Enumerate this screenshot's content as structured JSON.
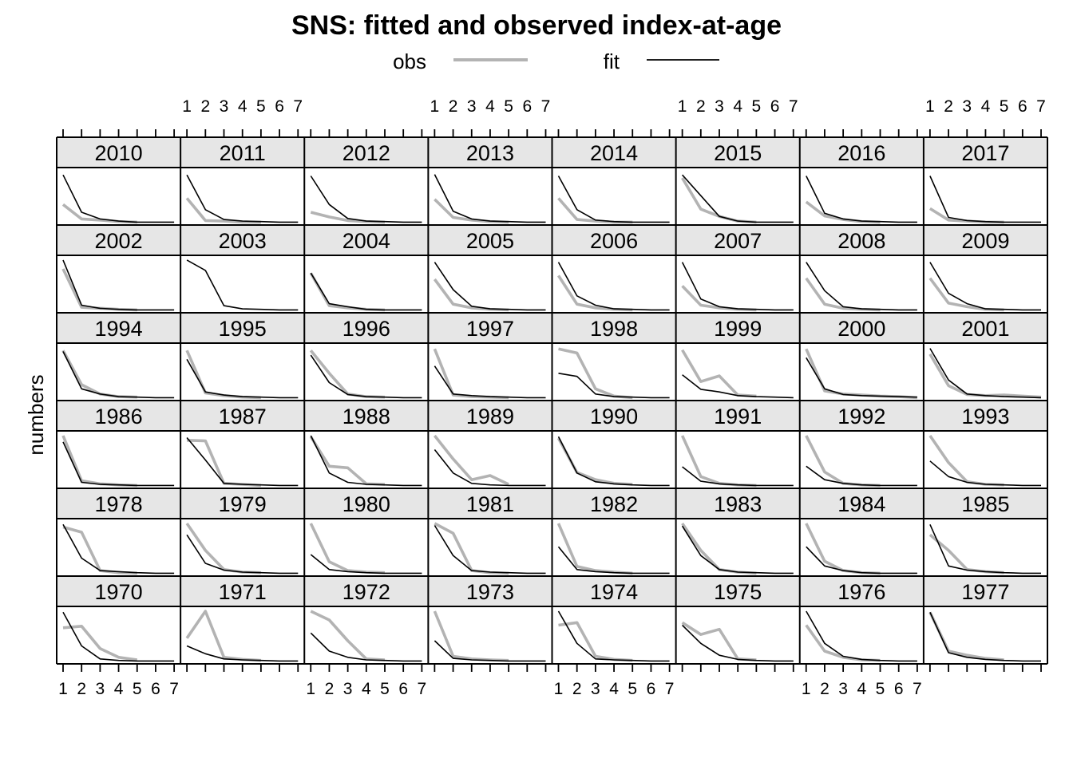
{
  "chart_data": {
    "type": "line",
    "title": "SNS: fitted and observed index-at-age",
    "ylabel": "numbers",
    "xlabel": "",
    "x": [
      1,
      2,
      3,
      4,
      5,
      6,
      7
    ],
    "xlim": [
      1,
      7
    ],
    "ylim": [
      0,
      1
    ],
    "grid": false,
    "legend": {
      "position": "top",
      "entries": [
        {
          "name": "obs",
          "color": "#b3b3b3"
        },
        {
          "name": "fit",
          "color": "#000000"
        }
      ]
    },
    "layout": {
      "columns": 8,
      "rows": 6
    },
    "panels": [
      {
        "year": "2010",
        "obs": [
          0.35,
          0.07,
          0.05,
          0.02,
          0.01,
          null,
          null
        ],
        "fit": [
          0.92,
          0.2,
          0.07,
          0.03,
          0.01,
          0.01,
          0.01
        ]
      },
      {
        "year": "2011",
        "obs": [
          0.47,
          0.04,
          0.03,
          0.01,
          0.01,
          null,
          null
        ],
        "fit": [
          0.92,
          0.25,
          0.06,
          0.03,
          0.02,
          0.01,
          0.01
        ]
      },
      {
        "year": "2012",
        "obs": [
          0.2,
          0.11,
          0.04,
          0.02,
          0.01,
          null,
          null
        ],
        "fit": [
          0.9,
          0.35,
          0.08,
          0.03,
          0.02,
          0.01,
          0.01
        ]
      },
      {
        "year": "2013",
        "obs": [
          0.45,
          0.1,
          0.05,
          0.02,
          0.01,
          null,
          null
        ],
        "fit": [
          0.93,
          0.22,
          0.07,
          0.03,
          0.02,
          0.01,
          0.01
        ]
      },
      {
        "year": "2014",
        "obs": [
          0.47,
          0.06,
          0.03,
          0.01,
          0.01,
          null,
          null
        ],
        "fit": [
          0.9,
          0.25,
          0.05,
          0.02,
          0.01,
          0.01,
          0.01
        ]
      },
      {
        "year": "2015",
        "obs": [
          0.86,
          0.26,
          0.12,
          0.03,
          0.01,
          null,
          null
        ],
        "fit": [
          0.92,
          0.52,
          0.12,
          0.03,
          0.01,
          0.01,
          0.01
        ]
      },
      {
        "year": "2016",
        "obs": [
          0.4,
          0.13,
          0.06,
          0.02,
          0.01,
          null,
          null
        ],
        "fit": [
          0.9,
          0.18,
          0.07,
          0.03,
          0.02,
          0.01,
          0.01
        ]
      },
      {
        "year": "2017",
        "obs": [
          0.27,
          0.05,
          0.03,
          0.01,
          0.01,
          null,
          null
        ],
        "fit": [
          0.9,
          0.1,
          0.04,
          0.02,
          0.01,
          0.01,
          0.01
        ]
      },
      {
        "year": "2002",
        "obs": [
          0.8,
          0.06,
          0.04,
          0.02,
          0.01,
          null,
          null
        ],
        "fit": [
          0.97,
          0.1,
          0.04,
          0.02,
          0.01,
          0.01,
          0.01
        ]
      },
      {
        "year": "2003",
        "obs": [
          null,
          null,
          null,
          null,
          null,
          null,
          null
        ],
        "fit": [
          0.97,
          0.77,
          0.09,
          0.03,
          0.02,
          0.01,
          0.01
        ]
      },
      {
        "year": "2004",
        "obs": [
          0.72,
          0.09,
          0.05,
          0.02,
          0.01,
          null,
          null
        ],
        "fit": [
          0.72,
          0.13,
          0.07,
          0.02,
          0.01,
          0.01,
          0.01
        ]
      },
      {
        "year": "2005",
        "obs": [
          0.6,
          0.12,
          0.05,
          0.02,
          0.01,
          null,
          null
        ],
        "fit": [
          0.93,
          0.4,
          0.08,
          0.03,
          0.02,
          0.01,
          0.01
        ]
      },
      {
        "year": "2006",
        "obs": [
          0.67,
          0.12,
          0.05,
          0.02,
          0.01,
          null,
          null
        ],
        "fit": [
          0.93,
          0.28,
          0.1,
          0.03,
          0.02,
          0.01,
          0.01
        ]
      },
      {
        "year": "2007",
        "obs": [
          0.47,
          0.1,
          0.05,
          0.02,
          0.01,
          null,
          null
        ],
        "fit": [
          0.93,
          0.22,
          0.07,
          0.03,
          0.02,
          0.01,
          0.01
        ]
      },
      {
        "year": "2008",
        "obs": [
          0.62,
          0.12,
          0.04,
          0.02,
          0.01,
          null,
          null
        ],
        "fit": [
          0.93,
          0.38,
          0.07,
          0.03,
          0.02,
          0.01,
          0.01
        ]
      },
      {
        "year": "2009",
        "obs": [
          0.62,
          0.14,
          0.07,
          0.02,
          0.01,
          null,
          null
        ],
        "fit": [
          0.93,
          0.33,
          0.13,
          0.03,
          0.02,
          0.01,
          0.01
        ]
      },
      {
        "year": "1994",
        "obs": [
          0.92,
          0.26,
          0.08,
          0.03,
          0.02,
          null,
          null
        ],
        "fit": [
          0.9,
          0.18,
          0.08,
          0.03,
          0.02,
          0.01,
          0.01
        ]
      },
      {
        "year": "1995",
        "obs": [
          0.92,
          0.1,
          0.05,
          0.02,
          0.01,
          null,
          null
        ],
        "fit": [
          0.75,
          0.12,
          0.06,
          0.03,
          0.02,
          0.01,
          0.01
        ]
      },
      {
        "year": "1996",
        "obs": [
          0.92,
          0.48,
          0.08,
          0.03,
          0.02,
          null,
          null
        ],
        "fit": [
          0.83,
          0.3,
          0.07,
          0.03,
          0.02,
          0.01,
          0.01
        ]
      },
      {
        "year": "1997",
        "obs": [
          0.95,
          0.06,
          0.03,
          0.02,
          0.01,
          null,
          null
        ],
        "fit": [
          0.62,
          0.08,
          0.05,
          0.03,
          0.02,
          0.01,
          0.01
        ]
      },
      {
        "year": "1998",
        "obs": [
          0.95,
          0.87,
          0.18,
          0.04,
          0.01,
          null,
          null
        ],
        "fit": [
          0.48,
          0.42,
          0.08,
          0.03,
          0.02,
          0.01,
          0.01
        ]
      },
      {
        "year": "1999",
        "obs": [
          0.93,
          0.32,
          0.43,
          0.06,
          0.04,
          null,
          null
        ],
        "fit": [
          0.45,
          0.17,
          0.12,
          0.05,
          0.03,
          0.02,
          0.01
        ]
      },
      {
        "year": "2000",
        "obs": [
          0.95,
          0.14,
          0.08,
          0.06,
          0.04,
          0.03,
          0.01
        ],
        "fit": [
          0.78,
          0.18,
          0.07,
          0.05,
          0.04,
          0.03,
          0.02
        ]
      },
      {
        "year": "2001",
        "obs": [
          0.85,
          0.24,
          0.07,
          0.05,
          0.06,
          0.04,
          0.02
        ],
        "fit": [
          0.96,
          0.35,
          0.08,
          0.05,
          0.03,
          0.02,
          0.01
        ]
      },
      {
        "year": "1986",
        "obs": [
          0.97,
          0.1,
          0.04,
          0.02,
          0.01,
          null,
          null
        ],
        "fit": [
          0.85,
          0.07,
          0.03,
          0.02,
          0.01,
          0.01,
          0.01
        ]
      },
      {
        "year": "1987",
        "obs": [
          0.88,
          0.87,
          0.05,
          0.03,
          0.01,
          null,
          null
        ],
        "fit": [
          0.93,
          0.5,
          0.05,
          0.03,
          0.02,
          0.01,
          0.01
        ]
      },
      {
        "year": "1988",
        "obs": [
          0.95,
          0.38,
          0.35,
          0.04,
          0.03,
          null,
          null
        ],
        "fit": [
          0.97,
          0.25,
          0.07,
          0.03,
          0.02,
          0.01,
          0.01
        ]
      },
      {
        "year": "1989",
        "obs": [
          0.97,
          0.52,
          0.12,
          0.2,
          0.03,
          null,
          null
        ],
        "fit": [
          0.7,
          0.25,
          0.05,
          0.02,
          0.01,
          0.01,
          0.01
        ]
      },
      {
        "year": "1990",
        "obs": [
          0.92,
          0.26,
          0.12,
          0.05,
          0.03,
          null,
          null
        ],
        "fit": [
          0.95,
          0.25,
          0.08,
          0.04,
          0.02,
          0.01,
          0.01
        ]
      },
      {
        "year": "1991",
        "obs": [
          0.97,
          0.18,
          0.05,
          0.02,
          0.01,
          null,
          null
        ],
        "fit": [
          0.37,
          0.09,
          0.04,
          0.02,
          0.01,
          0.01,
          0.01
        ]
      },
      {
        "year": "1992",
        "obs": [
          0.97,
          0.27,
          0.05,
          0.02,
          0.01,
          null,
          null
        ],
        "fit": [
          0.38,
          0.12,
          0.05,
          0.02,
          0.01,
          0.01,
          0.01
        ]
      },
      {
        "year": "1993",
        "obs": [
          0.97,
          0.45,
          0.08,
          0.03,
          0.02,
          null,
          null
        ],
        "fit": [
          0.48,
          0.18,
          0.07,
          0.03,
          0.02,
          0.01,
          0.01
        ]
      },
      {
        "year": "1978",
        "obs": [
          0.9,
          0.8,
          0.06,
          0.02,
          0.01,
          null,
          null
        ],
        "fit": [
          0.95,
          0.3,
          0.06,
          0.04,
          0.02,
          0.01,
          0.01
        ]
      },
      {
        "year": "1979",
        "obs": [
          0.97,
          0.45,
          0.08,
          0.03,
          0.02,
          null,
          null
        ],
        "fit": [
          0.75,
          0.2,
          0.07,
          0.03,
          0.02,
          0.01,
          0.01
        ]
      },
      {
        "year": "1980",
        "obs": [
          0.97,
          0.23,
          0.06,
          0.03,
          0.02,
          null,
          null
        ],
        "fit": [
          0.37,
          0.08,
          0.04,
          0.02,
          0.01,
          0.01,
          0.01
        ]
      },
      {
        "year": "1981",
        "obs": [
          0.97,
          0.78,
          0.06,
          0.02,
          0.01,
          null,
          null
        ],
        "fit": [
          0.93,
          0.35,
          0.06,
          0.03,
          0.02,
          0.01,
          0.01
        ]
      },
      {
        "year": "1982",
        "obs": [
          0.97,
          0.14,
          0.06,
          0.03,
          0.01,
          null,
          null
        ],
        "fit": [
          0.52,
          0.08,
          0.04,
          0.02,
          0.01,
          0.01,
          0.01
        ]
      },
      {
        "year": "1983",
        "obs": [
          0.97,
          0.45,
          0.08,
          0.03,
          0.01,
          null,
          null
        ],
        "fit": [
          0.92,
          0.35,
          0.08,
          0.03,
          0.02,
          0.01,
          0.01
        ]
      },
      {
        "year": "1984",
        "obs": [
          0.97,
          0.24,
          0.06,
          0.02,
          0.01,
          null,
          null
        ],
        "fit": [
          0.52,
          0.15,
          0.06,
          0.02,
          0.01,
          0.01,
          0.01
        ]
      },
      {
        "year": "1985",
        "obs": [
          0.75,
          0.45,
          0.08,
          0.04,
          0.02,
          null,
          null
        ],
        "fit": [
          0.95,
          0.15,
          0.07,
          0.04,
          0.02,
          0.01,
          0.01
        ]
      },
      {
        "year": "1970",
        "obs": [
          0.65,
          0.68,
          0.25,
          0.08,
          0.03,
          null,
          null
        ],
        "fit": [
          0.95,
          0.3,
          0.05,
          0.02,
          0.01,
          0.01,
          0.01
        ]
      },
      {
        "year": "1971",
        "obs": [
          0.45,
          0.97,
          0.08,
          0.04,
          0.02,
          null,
          null
        ],
        "fit": [
          0.3,
          0.15,
          0.05,
          0.03,
          0.02,
          0.01,
          0.01
        ]
      },
      {
        "year": "1972",
        "obs": [
          0.97,
          0.8,
          0.4,
          0.05,
          0.03,
          null,
          null
        ],
        "fit": [
          0.55,
          0.2,
          0.08,
          0.03,
          0.02,
          0.01,
          0.01
        ]
      },
      {
        "year": "1973",
        "obs": [
          0.97,
          0.1,
          0.05,
          0.03,
          0.02,
          null,
          null
        ],
        "fit": [
          0.4,
          0.06,
          0.03,
          0.02,
          0.01,
          0.01,
          0.01
        ]
      },
      {
        "year": "1974",
        "obs": [
          0.7,
          0.75,
          0.1,
          0.04,
          0.02,
          null,
          null
        ],
        "fit": [
          0.97,
          0.35,
          0.05,
          0.03,
          0.02,
          0.01,
          0.01
        ]
      },
      {
        "year": "1975",
        "obs": [
          0.75,
          0.52,
          0.62,
          0.05,
          0.03,
          null,
          null
        ],
        "fit": [
          0.7,
          0.35,
          0.12,
          0.04,
          0.02,
          0.01,
          0.01
        ]
      },
      {
        "year": "1976",
        "obs": [
          0.7,
          0.2,
          0.08,
          0.03,
          0.02,
          null,
          null
        ],
        "fit": [
          0.97,
          0.35,
          0.1,
          0.04,
          0.02,
          0.01,
          0.01
        ]
      },
      {
        "year": "1977",
        "obs": [
          0.95,
          0.2,
          0.12,
          0.06,
          0.03,
          null,
          null
        ],
        "fit": [
          0.95,
          0.17,
          0.08,
          0.04,
          0.02,
          0.01,
          0.01
        ]
      }
    ]
  }
}
